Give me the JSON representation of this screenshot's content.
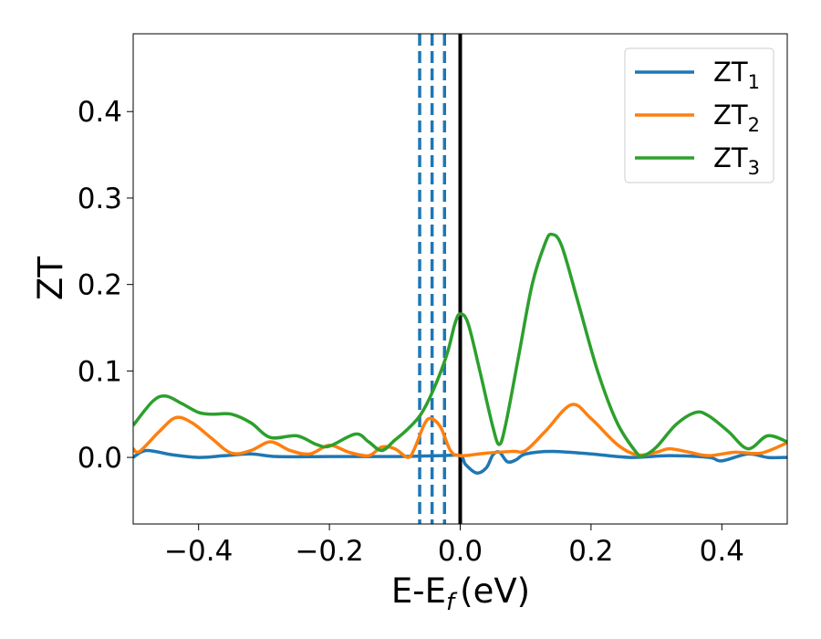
{
  "chart_data": {
    "type": "line",
    "title": "",
    "xlabel": "E-E",
    "xlabel_subscript": "f",
    "xlabel_unit": "(eV)",
    "ylabel": "ZT",
    "xlim": [
      -0.5,
      0.5
    ],
    "ylim": [
      -0.077,
      0.49
    ],
    "grid": false,
    "legend_position": "upper right",
    "x_ticks": [
      {
        "value": -0.4,
        "label": "−0.4"
      },
      {
        "value": -0.2,
        "label": "−0.2"
      },
      {
        "value": 0.0,
        "label": "0.0"
      },
      {
        "value": 0.2,
        "label": "0.2"
      },
      {
        "value": 0.4,
        "label": "0.4"
      }
    ],
    "y_ticks": [
      {
        "value": 0.0,
        "label": "0.0"
      },
      {
        "value": 0.1,
        "label": "0.1"
      },
      {
        "value": 0.2,
        "label": "0.2"
      },
      {
        "value": 0.3,
        "label": "0.3"
      },
      {
        "value": 0.4,
        "label": "0.4"
      }
    ],
    "vertical_lines": [
      {
        "x": -0.062,
        "style": "dashed",
        "color": "#1f77b4"
      },
      {
        "x": -0.043,
        "style": "dashed",
        "color": "#1f77b4"
      },
      {
        "x": -0.024,
        "style": "dashed",
        "color": "#1f77b4"
      },
      {
        "x": 0.0,
        "style": "solid",
        "color": "#000000"
      }
    ],
    "series": [
      {
        "name": "ZT",
        "name_subscript": "1",
        "color": "#1f77b4",
        "points": [
          [
            -0.5,
            0.0
          ],
          [
            -0.48,
            0.008
          ],
          [
            -0.44,
            0.003
          ],
          [
            -0.4,
            0.0
          ],
          [
            -0.36,
            0.002
          ],
          [
            -0.32,
            0.004
          ],
          [
            -0.28,
            0.001
          ],
          [
            -0.2,
            0.001
          ],
          [
            -0.1,
            0.001
          ],
          [
            -0.03,
            0.002
          ],
          [
            0.0,
            0.002
          ],
          [
            0.008,
            -0.008
          ],
          [
            0.025,
            -0.018
          ],
          [
            0.04,
            -0.012
          ],
          [
            0.05,
            0.003
          ],
          [
            0.06,
            0.006
          ],
          [
            0.072,
            -0.005
          ],
          [
            0.085,
            -0.003
          ],
          [
            0.1,
            0.004
          ],
          [
            0.14,
            0.007
          ],
          [
            0.2,
            0.004
          ],
          [
            0.26,
            0.0
          ],
          [
            0.32,
            0.002
          ],
          [
            0.38,
            0.0
          ],
          [
            0.4,
            -0.004
          ],
          [
            0.44,
            0.004
          ],
          [
            0.47,
            0.0
          ],
          [
            0.5,
            0.0
          ]
        ]
      },
      {
        "name": "ZT",
        "name_subscript": "2",
        "color": "#ff7f0e",
        "points": [
          [
            -0.5,
            0.01
          ],
          [
            -0.49,
            0.007
          ],
          [
            -0.46,
            0.03
          ],
          [
            -0.435,
            0.046
          ],
          [
            -0.41,
            0.04
          ],
          [
            -0.38,
            0.022
          ],
          [
            -0.35,
            0.005
          ],
          [
            -0.32,
            0.008
          ],
          [
            -0.29,
            0.018
          ],
          [
            -0.26,
            0.008
          ],
          [
            -0.23,
            0.004
          ],
          [
            -0.2,
            0.014
          ],
          [
            -0.17,
            0.006
          ],
          [
            -0.14,
            0.002
          ],
          [
            -0.12,
            0.012
          ],
          [
            -0.1,
            0.01
          ],
          [
            -0.08,
            0.0
          ],
          [
            -0.07,
            0.01
          ],
          [
            -0.055,
            0.038
          ],
          [
            -0.045,
            0.045
          ],
          [
            -0.03,
            0.035
          ],
          [
            -0.015,
            0.008
          ],
          [
            0.0,
            0.002
          ],
          [
            0.04,
            0.005
          ],
          [
            0.08,
            0.007
          ],
          [
            0.1,
            0.008
          ],
          [
            0.13,
            0.03
          ],
          [
            0.17,
            0.061
          ],
          [
            0.2,
            0.045
          ],
          [
            0.24,
            0.015
          ],
          [
            0.27,
            0.003
          ],
          [
            0.3,
            0.006
          ],
          [
            0.32,
            0.01
          ],
          [
            0.35,
            0.006
          ],
          [
            0.38,
            0.002
          ],
          [
            0.42,
            0.006
          ],
          [
            0.46,
            0.005
          ],
          [
            0.5,
            0.017
          ]
        ]
      },
      {
        "name": "ZT",
        "name_subscript": "3",
        "color": "#2ca02c",
        "points": [
          [
            -0.5,
            0.037
          ],
          [
            -0.47,
            0.065
          ],
          [
            -0.45,
            0.071
          ],
          [
            -0.425,
            0.062
          ],
          [
            -0.4,
            0.052
          ],
          [
            -0.38,
            0.05
          ],
          [
            -0.35,
            0.05
          ],
          [
            -0.32,
            0.04
          ],
          [
            -0.29,
            0.023
          ],
          [
            -0.25,
            0.025
          ],
          [
            -0.22,
            0.015
          ],
          [
            -0.2,
            0.013
          ],
          [
            -0.16,
            0.027
          ],
          [
            -0.14,
            0.018
          ],
          [
            -0.12,
            0.008
          ],
          [
            -0.1,
            0.02
          ],
          [
            -0.08,
            0.033
          ],
          [
            -0.06,
            0.05
          ],
          [
            -0.04,
            0.08
          ],
          [
            -0.02,
            0.12
          ],
          [
            -0.008,
            0.155
          ],
          [
            0.0,
            0.166
          ],
          [
            0.012,
            0.155
          ],
          [
            0.03,
            0.1
          ],
          [
            0.05,
            0.035
          ],
          [
            0.06,
            0.015
          ],
          [
            0.07,
            0.04
          ],
          [
            0.09,
            0.12
          ],
          [
            0.11,
            0.2
          ],
          [
            0.13,
            0.248
          ],
          [
            0.14,
            0.258
          ],
          [
            0.155,
            0.245
          ],
          [
            0.18,
            0.18
          ],
          [
            0.21,
            0.1
          ],
          [
            0.24,
            0.04
          ],
          [
            0.27,
            0.005
          ],
          [
            0.28,
            0.002
          ],
          [
            0.3,
            0.012
          ],
          [
            0.33,
            0.038
          ],
          [
            0.36,
            0.052
          ],
          [
            0.38,
            0.048
          ],
          [
            0.41,
            0.03
          ],
          [
            0.44,
            0.01
          ],
          [
            0.47,
            0.025
          ],
          [
            0.5,
            0.018
          ]
        ]
      }
    ]
  }
}
